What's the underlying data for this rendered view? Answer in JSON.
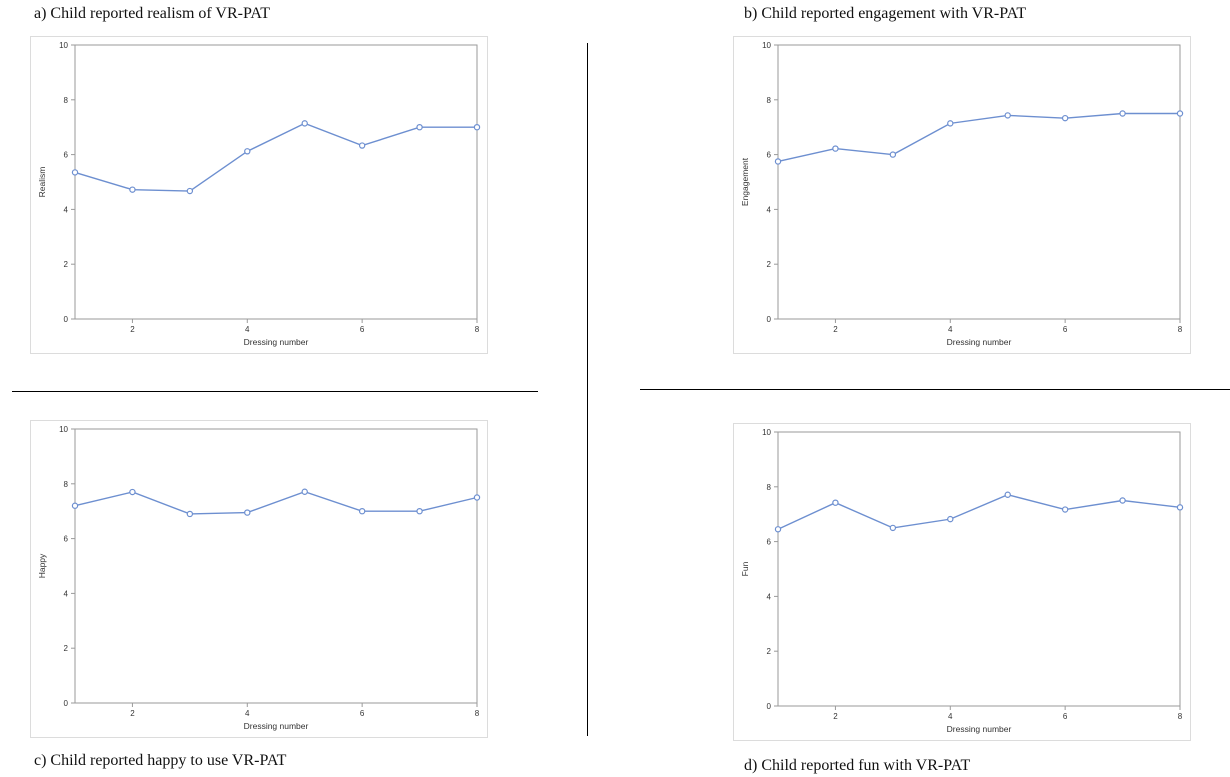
{
  "captions": {
    "a": "a) Child reported realism of VR-PAT",
    "b": "b) Child reported engagement with VR-PAT",
    "c": "c) Child reported happy to use VR-PAT",
    "d": "d) Child reported fun with VR-PAT"
  },
  "style": {
    "line_color": "#6d8fd0",
    "marker_color": "#6d8fd0",
    "axis_color": "#9a9a9a",
    "frame_color": "#dcdcdc"
  },
  "chart_data": [
    {
      "type": "line",
      "title": "a) Child reported realism of VR-PAT",
      "xlabel": "Dressing number",
      "ylabel": "Realism",
      "x": [
        1,
        2,
        3,
        4,
        5,
        6,
        7,
        8
      ],
      "y": [
        5.35,
        4.72,
        4.67,
        6.12,
        7.14,
        6.33,
        7.0,
        7.0
      ],
      "xticks": [
        2,
        4,
        6,
        8
      ],
      "yticks": [
        0,
        2,
        4,
        6,
        8,
        10
      ],
      "xlim": [
        1,
        8
      ],
      "ylim": [
        0,
        10
      ],
      "markers": "open-circle",
      "grid": false
    },
    {
      "type": "line",
      "title": "b) Child reported engagement with VR-PAT",
      "xlabel": "Dressing number",
      "ylabel": "Engagement",
      "x": [
        1,
        2,
        3,
        4,
        5,
        6,
        7,
        8
      ],
      "y": [
        5.75,
        6.22,
        6.0,
        7.14,
        7.43,
        7.33,
        7.5,
        7.5
      ],
      "xticks": [
        2,
        4,
        6,
        8
      ],
      "yticks": [
        0,
        2,
        4,
        6,
        8,
        10
      ],
      "xlim": [
        1,
        8
      ],
      "ylim": [
        0,
        10
      ],
      "markers": "open-circle",
      "grid": false
    },
    {
      "type": "line",
      "title": "c) Child reported happy to use VR-PAT",
      "xlabel": "Dressing number",
      "ylabel": "Happy",
      "x": [
        1,
        2,
        3,
        4,
        5,
        6,
        7,
        8
      ],
      "y": [
        7.2,
        7.7,
        6.9,
        6.95,
        7.71,
        7.0,
        7.0,
        7.5
      ],
      "xticks": [
        2,
        4,
        6,
        8
      ],
      "yticks": [
        0,
        2,
        4,
        6,
        8,
        10
      ],
      "xlim": [
        1,
        8
      ],
      "ylim": [
        0,
        10
      ],
      "markers": "open-circle",
      "grid": false
    },
    {
      "type": "line",
      "title": "d) Child reported fun with VR-PAT",
      "xlabel": "Dressing number",
      "ylabel": "Fun",
      "x": [
        1,
        2,
        3,
        4,
        5,
        6,
        7,
        8
      ],
      "y": [
        6.45,
        7.42,
        6.5,
        6.82,
        7.71,
        7.17,
        7.5,
        7.25
      ],
      "xticks": [
        2,
        4,
        6,
        8
      ],
      "yticks": [
        0,
        2,
        4,
        6,
        8,
        10
      ],
      "xlim": [
        1,
        8
      ],
      "ylim": [
        0,
        10
      ],
      "markers": "open-circle",
      "grid": false
    }
  ]
}
